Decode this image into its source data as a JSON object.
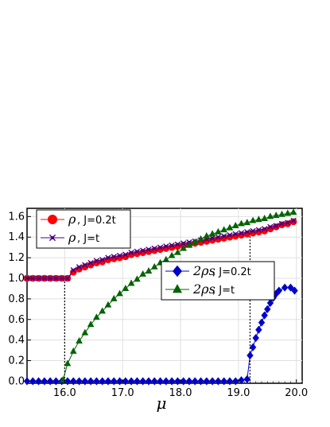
{
  "chart_data": {
    "type": "line",
    "xlabel": "μ",
    "ylabel": "",
    "xlim": [
      15.35,
      20.1
    ],
    "ylim": [
      -0.02,
      1.68
    ],
    "xticks": [
      "16.0",
      "17.0",
      "18.0",
      "19.0",
      "20.0"
    ],
    "yticks": [
      "0.0",
      "0.2",
      "0.4",
      "0.6",
      "0.8",
      "1.0",
      "1.2",
      "1.4",
      "1.6"
    ],
    "grid": true,
    "vlines": [
      16.0,
      19.2
    ],
    "legends": [
      {
        "placement": "top-left",
        "entries": [
          {
            "symbol": "ρ",
            "text": ", J=0.2t",
            "color": "#ff0000",
            "marker": "circle"
          },
          {
            "symbol": "ρ",
            "text": ", J=t",
            "color": "#4b0082",
            "marker": "star"
          }
        ]
      },
      {
        "placement": "center-right",
        "entries": [
          {
            "symbol": "2ρs",
            "text": ", J=0.2t",
            "color": "#0000cc",
            "marker": "diamond"
          },
          {
            "symbol": "2ρs",
            "text": ", J=t",
            "color": "#006400",
            "marker": "triangle"
          }
        ]
      }
    ],
    "series": [
      {
        "name": "ρ, J=0.2t",
        "color": "#ff0000",
        "marker": "circle",
        "x": [
          15.35,
          15.45,
          15.55,
          15.65,
          15.75,
          15.85,
          15.95,
          16.05,
          16.15,
          16.25,
          16.35,
          16.45,
          16.55,
          16.65,
          16.75,
          16.85,
          16.95,
          17.05,
          17.15,
          17.25,
          17.35,
          17.45,
          17.55,
          17.65,
          17.75,
          17.85,
          17.95,
          18.05,
          18.15,
          18.25,
          18.35,
          18.45,
          18.55,
          18.65,
          18.75,
          18.85,
          18.95,
          19.05,
          19.15,
          19.25,
          19.35,
          19.45,
          19.55,
          19.65,
          19.75,
          19.85,
          19.95
        ],
        "y": [
          1.0,
          1.0,
          1.0,
          1.0,
          1.0,
          1.0,
          1.0,
          1.0,
          1.06,
          1.09,
          1.11,
          1.13,
          1.15,
          1.16,
          1.18,
          1.19,
          1.2,
          1.21,
          1.23,
          1.24,
          1.25,
          1.26,
          1.27,
          1.28,
          1.29,
          1.3,
          1.31,
          1.32,
          1.33,
          1.34,
          1.35,
          1.36,
          1.37,
          1.38,
          1.39,
          1.4,
          1.41,
          1.42,
          1.43,
          1.44,
          1.45,
          1.46,
          1.48,
          1.5,
          1.52,
          1.53,
          1.55
        ]
      },
      {
        "name": "ρ, J=t",
        "color": "#4b0082",
        "marker": "star",
        "x": [
          15.35,
          15.45,
          15.55,
          15.65,
          15.75,
          15.85,
          15.95,
          16.05,
          16.15,
          16.25,
          16.35,
          16.45,
          16.55,
          16.65,
          16.75,
          16.85,
          16.95,
          17.05,
          17.15,
          17.25,
          17.35,
          17.45,
          17.55,
          17.65,
          17.75,
          17.85,
          17.95,
          18.05,
          18.15,
          18.25,
          18.35,
          18.45,
          18.55,
          18.65,
          18.75,
          18.85,
          18.95,
          19.05,
          19.15,
          19.25,
          19.35,
          19.45,
          19.55,
          19.65,
          19.75,
          19.85,
          19.95
        ],
        "y": [
          1.0,
          1.0,
          1.0,
          1.0,
          1.0,
          1.0,
          1.0,
          1.0,
          1.08,
          1.11,
          1.13,
          1.15,
          1.17,
          1.18,
          1.2,
          1.21,
          1.22,
          1.23,
          1.25,
          1.26,
          1.27,
          1.28,
          1.29,
          1.3,
          1.31,
          1.32,
          1.33,
          1.34,
          1.35,
          1.36,
          1.37,
          1.38,
          1.39,
          1.4,
          1.41,
          1.42,
          1.43,
          1.44,
          1.45,
          1.46,
          1.47,
          1.48,
          1.5,
          1.51,
          1.53,
          1.54,
          1.56
        ]
      },
      {
        "name": "2ρs, J=0.2t",
        "color": "#0000cc",
        "marker": "diamond",
        "x": [
          15.35,
          15.45,
          15.55,
          15.65,
          15.75,
          15.85,
          15.95,
          16.05,
          16.15,
          16.25,
          16.35,
          16.45,
          16.55,
          16.65,
          16.75,
          16.85,
          16.95,
          17.05,
          17.15,
          17.25,
          17.35,
          17.45,
          17.55,
          17.65,
          17.75,
          17.85,
          17.95,
          18.05,
          18.15,
          18.25,
          18.35,
          18.45,
          18.55,
          18.65,
          18.75,
          18.85,
          18.95,
          19.05,
          19.15,
          19.2,
          19.25,
          19.3,
          19.35,
          19.4,
          19.45,
          19.5,
          19.55,
          19.6,
          19.65,
          19.7,
          19.8,
          19.9,
          19.97
        ],
        "y": [
          0,
          0,
          0,
          0,
          0,
          0,
          0,
          0,
          0,
          0,
          0,
          0,
          0,
          0,
          0,
          0,
          0,
          0,
          0,
          0,
          0,
          0,
          0,
          0,
          0,
          0,
          0,
          0,
          0,
          0,
          0,
          0,
          0,
          0,
          0,
          0,
          0,
          0.01,
          0.02,
          0.25,
          0.33,
          0.42,
          0.5,
          0.57,
          0.64,
          0.7,
          0.76,
          0.81,
          0.85,
          0.88,
          0.91,
          0.91,
          0.88
        ]
      },
      {
        "name": "2ρs, J=t",
        "color": "#006400",
        "marker": "triangle",
        "x": [
          15.97,
          16.05,
          16.15,
          16.25,
          16.35,
          16.45,
          16.55,
          16.65,
          16.75,
          16.85,
          16.95,
          17.05,
          17.15,
          17.25,
          17.35,
          17.45,
          17.55,
          17.65,
          17.75,
          17.85,
          17.95,
          18.05,
          18.15,
          18.25,
          18.35,
          18.45,
          18.55,
          18.65,
          18.75,
          18.85,
          18.95,
          19.05,
          19.15,
          19.25,
          19.35,
          19.45,
          19.55,
          19.65,
          19.75,
          19.85,
          19.95
        ],
        "y": [
          0.01,
          0.17,
          0.29,
          0.39,
          0.47,
          0.55,
          0.62,
          0.68,
          0.74,
          0.8,
          0.85,
          0.9,
          0.95,
          0.99,
          1.04,
          1.07,
          1.11,
          1.15,
          1.18,
          1.22,
          1.25,
          1.29,
          1.32,
          1.35,
          1.38,
          1.41,
          1.43,
          1.45,
          1.47,
          1.49,
          1.51,
          1.53,
          1.54,
          1.56,
          1.57,
          1.58,
          1.6,
          1.61,
          1.62,
          1.63,
          1.64
        ]
      }
    ]
  }
}
